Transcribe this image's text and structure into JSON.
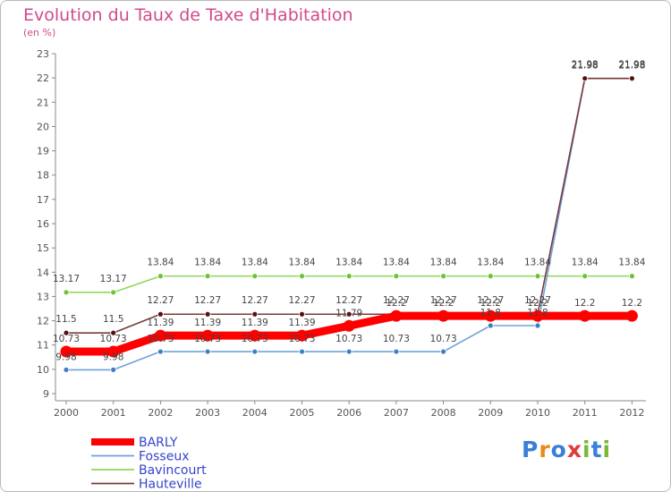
{
  "title": "Evolution du Taux de Taxe d'Habitation",
  "subtitle": "(en %)",
  "logo": {
    "letters": [
      "P",
      "r",
      "o",
      "x",
      "i",
      "t",
      "i"
    ],
    "colors": [
      "#3b7fd6",
      "#e88a1a",
      "#3b7fd6",
      "#e03a3a",
      "#7ab83a",
      "#3b7fd6",
      "#7ab83a"
    ]
  },
  "chart_data": {
    "type": "line",
    "title": "Evolution du Taux de Taxe d'Habitation",
    "ylabel": "(en %)",
    "xlabel": "",
    "categories": [
      "2000",
      "2001",
      "2002",
      "2003",
      "2004",
      "2005",
      "2006",
      "2007",
      "2008",
      "2009",
      "2010",
      "2011",
      "2012"
    ],
    "ylim": [
      9,
      23
    ],
    "yticks": [
      9,
      10,
      11,
      12,
      13,
      14,
      15,
      16,
      17,
      18,
      19,
      20,
      21,
      22,
      23
    ],
    "grid": false,
    "legend": "bottom-left",
    "series": [
      {
        "name": "BARLY",
        "color": "#ff0000",
        "values": [
          10.73,
          10.73,
          11.39,
          11.39,
          11.39,
          11.39,
          11.79,
          12.2,
          12.2,
          12.2,
          12.2,
          12.2,
          12.2
        ],
        "labels": [
          "10.73",
          "10.73",
          "11.39",
          "11.39",
          "11.39",
          "11.39",
          "11.79",
          "12.2",
          "12.2",
          "12.2",
          "12.2",
          "12.2",
          "12.2"
        ]
      },
      {
        "name": "Fosseux",
        "color": "#6fa3d8",
        "values": [
          9.98,
          9.98,
          10.73,
          10.73,
          10.73,
          10.73,
          10.73,
          10.73,
          10.73,
          11.8,
          11.8,
          21.98,
          21.98
        ],
        "labels": [
          "9.98",
          "9.98",
          "10.73",
          "10.73",
          "10.73",
          "10.73",
          "10.73",
          "10.73",
          "10.73",
          "11.8",
          "11.8",
          "21.98",
          "21.98"
        ]
      },
      {
        "name": "Bavincourt",
        "color": "#8fd65a",
        "values": [
          13.17,
          13.17,
          13.84,
          13.84,
          13.84,
          13.84,
          13.84,
          13.84,
          13.84,
          13.84,
          13.84,
          13.84,
          13.84
        ],
        "labels": [
          "13.17",
          "13.17",
          "13.84",
          "13.84",
          "13.84",
          "13.84",
          "13.84",
          "13.84",
          "13.84",
          "13.84",
          "13.84",
          "13.84",
          "13.84"
        ]
      },
      {
        "name": "Hauteville",
        "color": "#7a3a3a",
        "values": [
          11.5,
          11.5,
          12.27,
          12.27,
          12.27,
          12.27,
          12.27,
          12.27,
          12.27,
          12.27,
          12.27,
          21.98,
          21.98
        ],
        "labels": [
          "11.5",
          "11.5",
          "12.27",
          "12.27",
          "12.27",
          "12.27",
          "12.27",
          "12.27",
          "12.27",
          "12.27",
          "12.27",
          "21.98",
          "21.98"
        ]
      }
    ]
  }
}
